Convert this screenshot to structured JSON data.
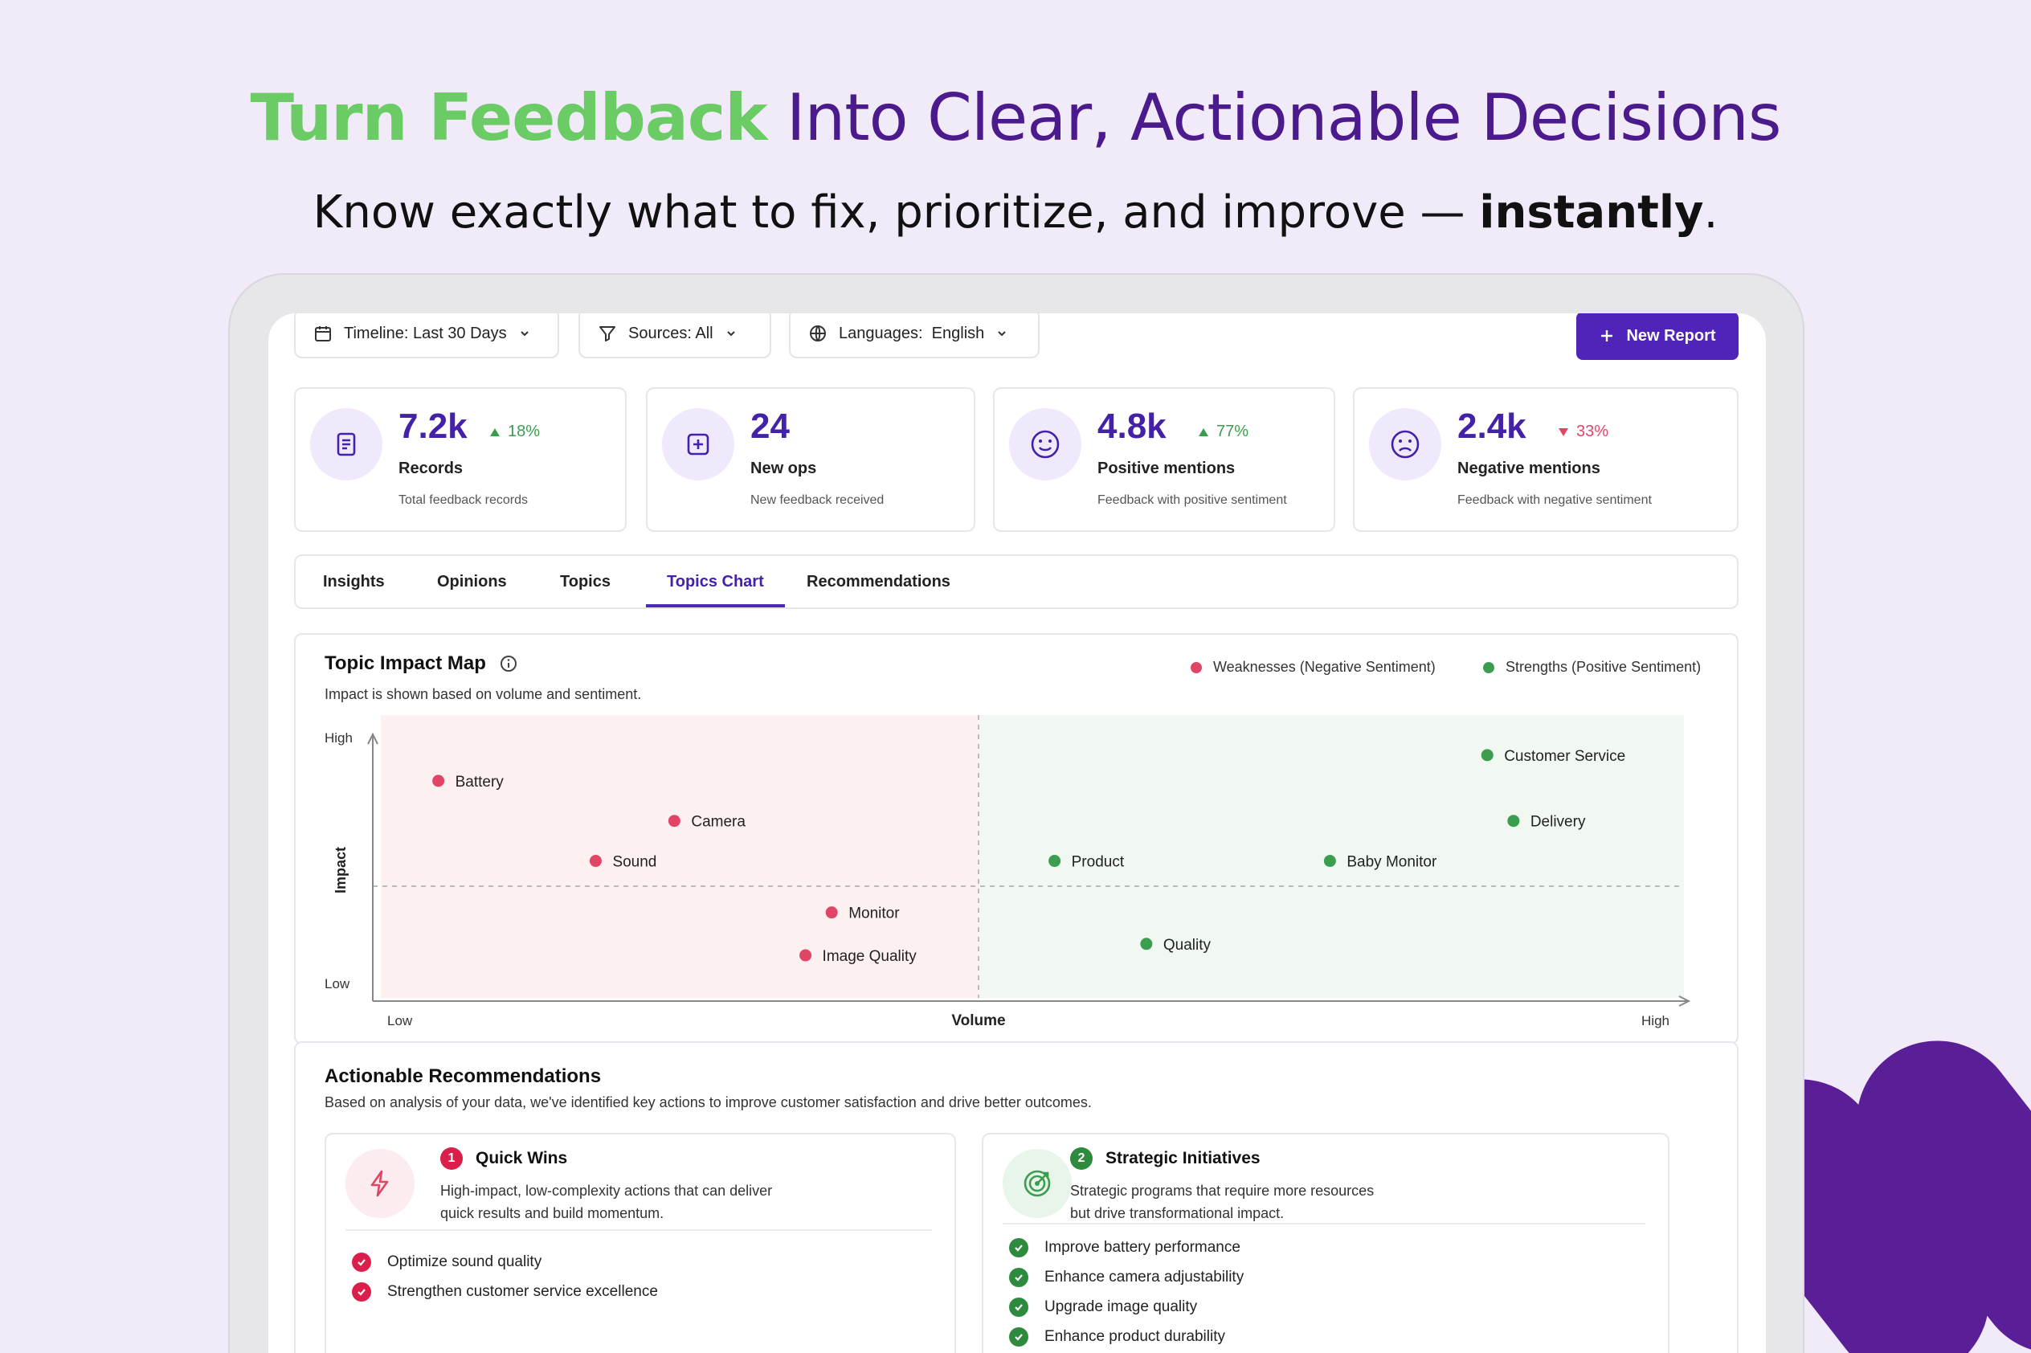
{
  "hero": {
    "title_highlight": "Turn Feedback",
    "title_rest": " Into Clear, Actionable Decisions",
    "subtitle_pre": "Know exactly what to fix, prioritize, and improve — ",
    "subtitle_bold": "instantly",
    "subtitle_post": "."
  },
  "toolbar": {
    "timeline": "Timeline: Last 30 Days",
    "sources": "Sources: All",
    "languages_label": "Languages:",
    "languages_value": "English",
    "new_report": "New Report"
  },
  "stats": [
    {
      "value": "7.2k",
      "trend": "18%",
      "trend_dir": "up",
      "label": "Records",
      "sub": "Total feedback records"
    },
    {
      "value": "24",
      "label": "New ops",
      "sub": "New feedback received"
    },
    {
      "value": "4.8k",
      "trend": "77%",
      "trend_dir": "up",
      "label": "Positive mentions",
      "sub": "Feedback with positive sentiment"
    },
    {
      "value": "2.4k",
      "trend": "33%",
      "trend_dir": "down",
      "label": "Negative mentions",
      "sub": "Feedback with negative sentiment"
    }
  ],
  "tabs": [
    {
      "label": "Insights"
    },
    {
      "label": "Opinions"
    },
    {
      "label": "Topics"
    },
    {
      "label": "Topics Chart",
      "active": true
    },
    {
      "label": "Recommendations"
    }
  ],
  "chart": {
    "title": "Topic Impact Map",
    "subtitle": "Impact is shown based on volume and sentiment.",
    "legend_neg": "Weaknesses (Negative Sentiment)",
    "legend_pos": "Strengths (Positive Sentiment)",
    "y_high": "High",
    "y_low": "Low",
    "y_label": "Impact",
    "x_low": "Low",
    "x_label": "Volume",
    "x_high": "High",
    "colors": {
      "negative": "#E04566",
      "positive": "#3A9E4E",
      "neg_bg": "#FDF0F1",
      "pos_bg": "#F1F8F1"
    }
  },
  "chart_data": {
    "type": "scatter",
    "xlabel": "Volume",
    "ylabel": "Impact",
    "points": [
      {
        "label": "Battery",
        "x": 0.05,
        "y": 0.77,
        "sentiment": "negative"
      },
      {
        "label": "Camera",
        "x": 0.23,
        "y": 0.63,
        "sentiment": "negative"
      },
      {
        "label": "Sound",
        "x": 0.17,
        "y": 0.49,
        "sentiment": "negative"
      },
      {
        "label": "Monitor",
        "x": 0.35,
        "y": 0.31,
        "sentiment": "negative"
      },
      {
        "label": "Image Quality",
        "x": 0.33,
        "y": 0.16,
        "sentiment": "negative"
      },
      {
        "label": "Customer Service",
        "x": 0.85,
        "y": 0.86,
        "sentiment": "positive"
      },
      {
        "label": "Delivery",
        "x": 0.87,
        "y": 0.63,
        "sentiment": "positive"
      },
      {
        "label": "Product",
        "x": 0.52,
        "y": 0.49,
        "sentiment": "positive"
      },
      {
        "label": "Baby Monitor",
        "x": 0.73,
        "y": 0.49,
        "sentiment": "positive"
      },
      {
        "label": "Quality",
        "x": 0.59,
        "y": 0.2,
        "sentiment": "positive"
      }
    ]
  },
  "recommendations": {
    "title": "Actionable Recommendations",
    "subtitle": "Based on analysis of your data, we've identified key actions to improve customer satisfaction and drive better outcomes.",
    "groups": [
      {
        "num": "1",
        "title": "Quick Wins",
        "desc_1": "High-impact, low-complexity actions that can deliver",
        "desc_2": "quick results and build momentum.",
        "items": [
          "Optimize sound quality",
          "Strengthen customer service excellence"
        ]
      },
      {
        "num": "2",
        "title": "Strategic Initiatives",
        "desc_1": "Strategic programs that require more resources",
        "desc_2": "but drive transformational impact.",
        "items": [
          "Improve battery performance",
          "Enhance camera adjustability",
          "Upgrade image quality",
          "Enhance product durability"
        ]
      }
    ]
  }
}
